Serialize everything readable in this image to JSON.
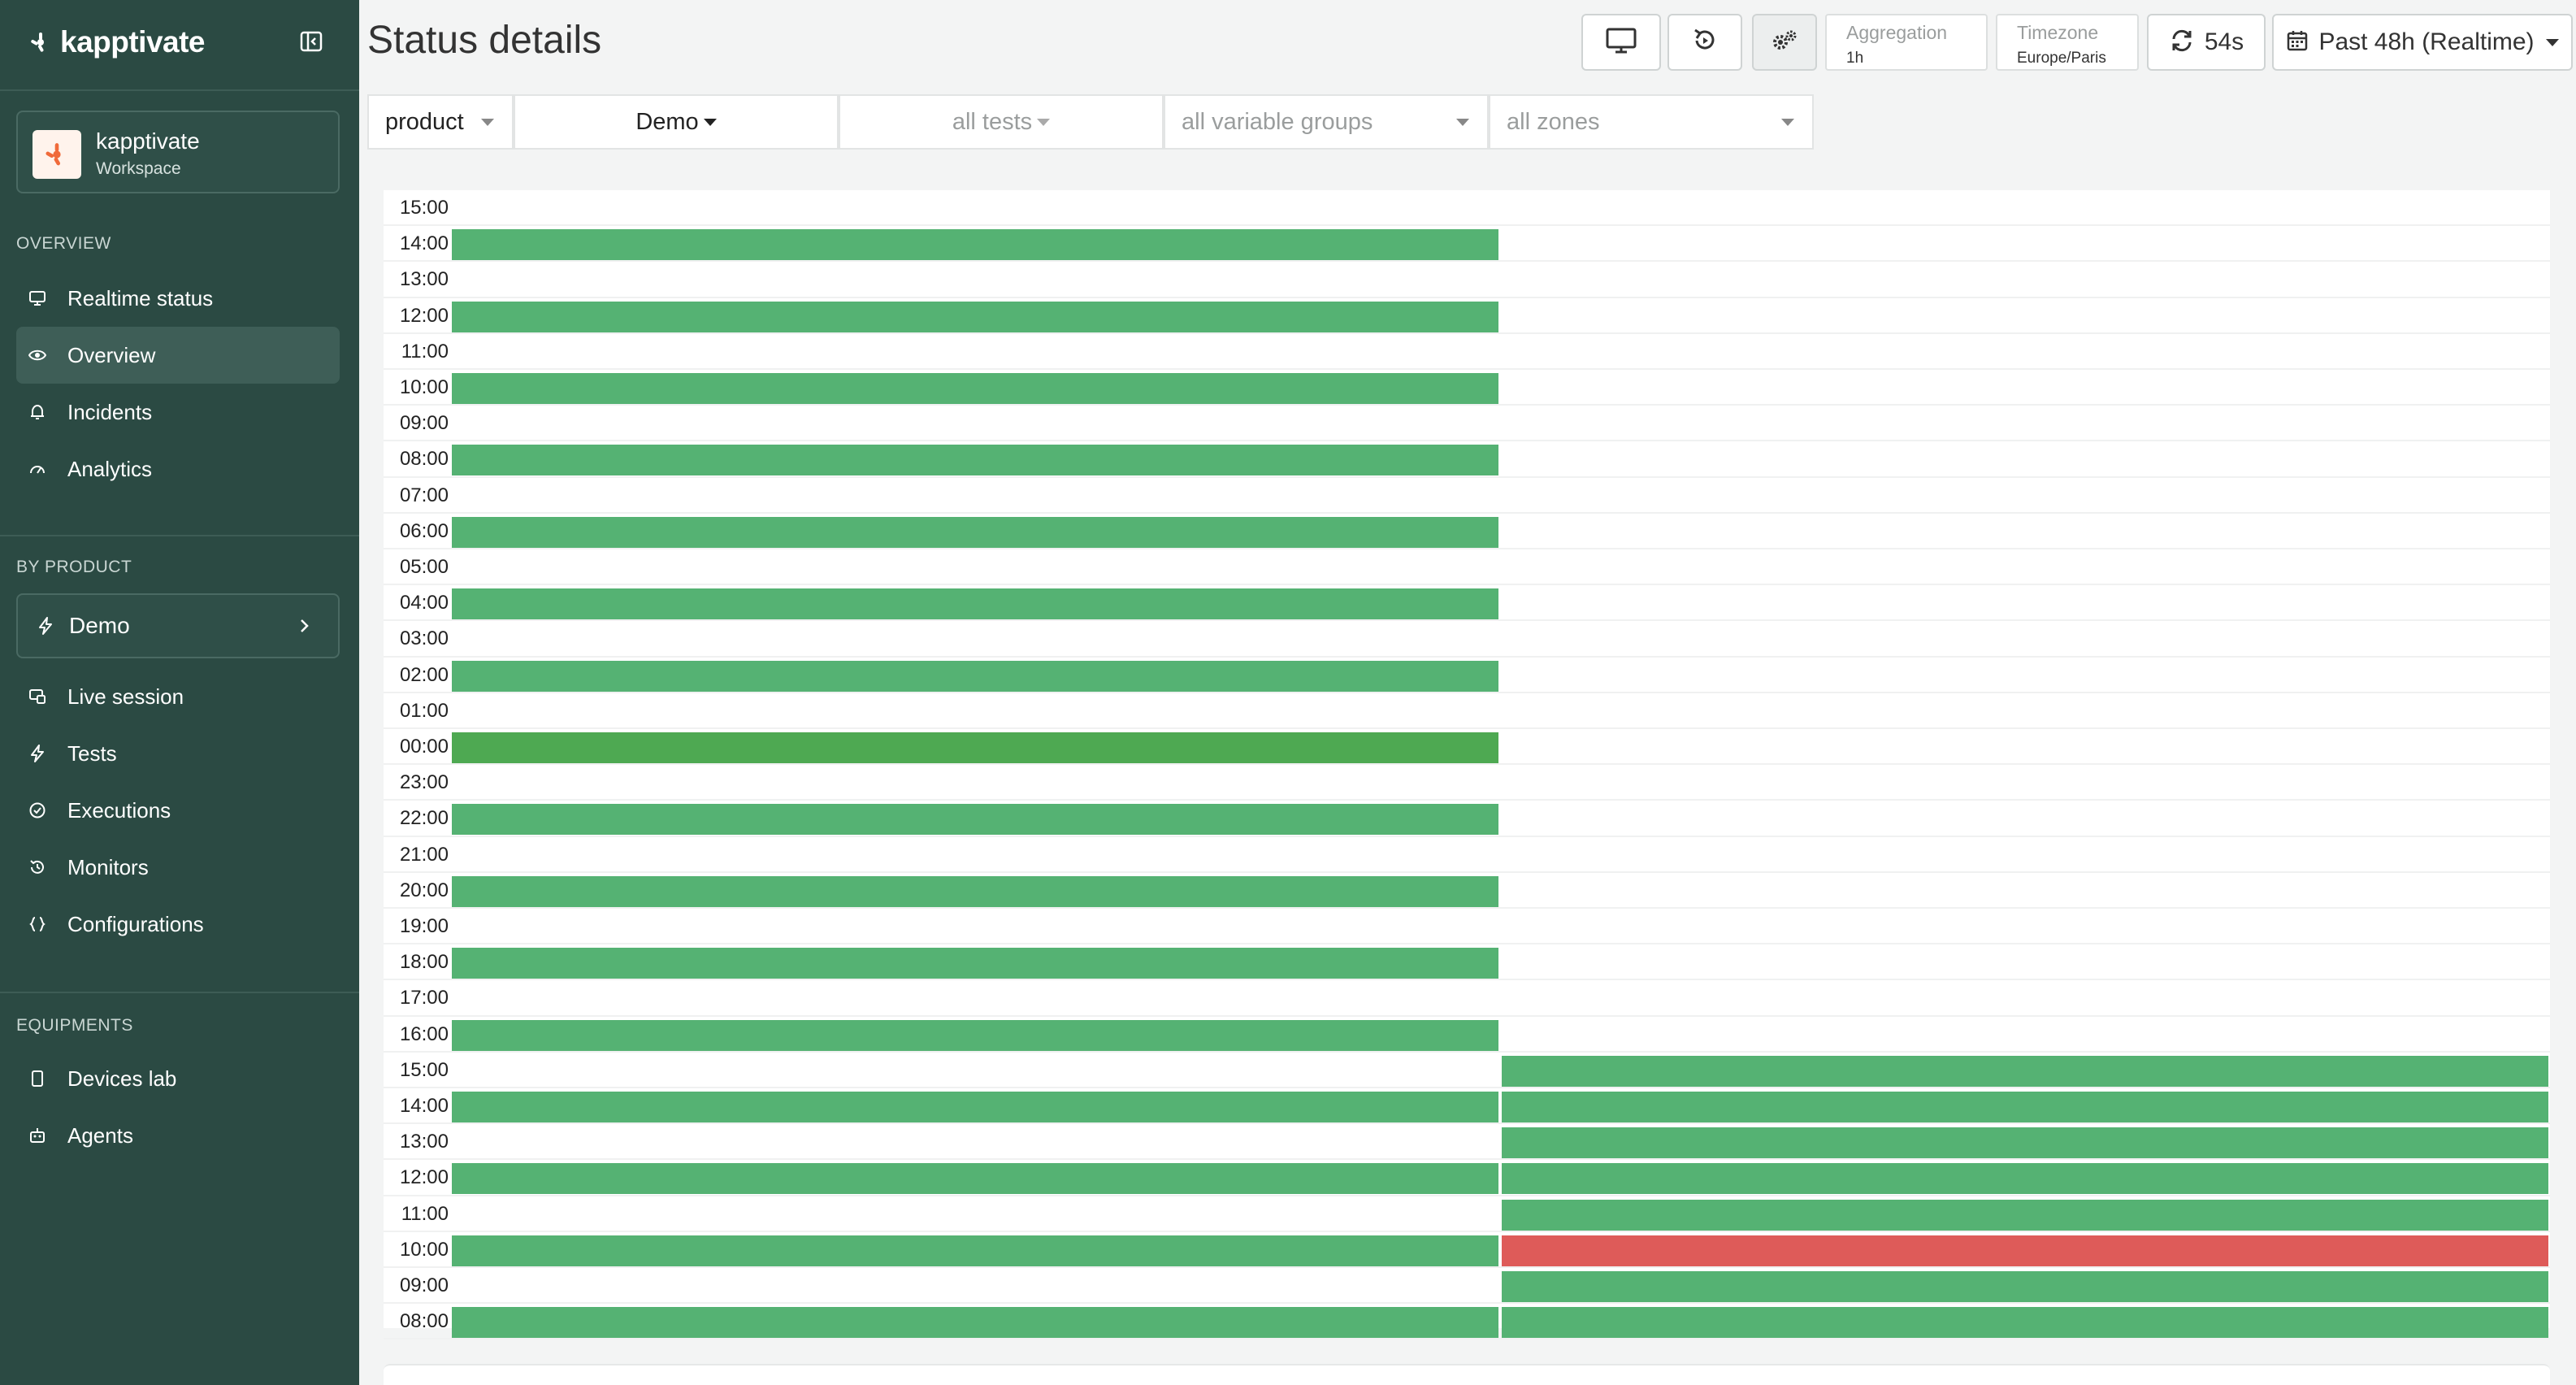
{
  "sidebar": {
    "brand": "kapptivate",
    "workspace": {
      "name": "kapptivate",
      "sub": "Workspace"
    },
    "sections": {
      "overview": "OVERVIEW",
      "by_product": "BY PRODUCT",
      "equipments": "EQUIPMENTS"
    },
    "overview_items": [
      {
        "label": "Realtime status",
        "icon": "monitor-icon"
      },
      {
        "label": "Overview",
        "icon": "eye-icon",
        "active": true
      },
      {
        "label": "Incidents",
        "icon": "bell-icon"
      },
      {
        "label": "Analytics",
        "icon": "gauge-icon"
      }
    ],
    "product": {
      "label": "Demo",
      "icon": "bolt-icon"
    },
    "product_items": [
      {
        "label": "Live session",
        "icon": "screen-share-icon"
      },
      {
        "label": "Tests",
        "icon": "bolt-icon"
      },
      {
        "label": "Executions",
        "icon": "check-circle-icon"
      },
      {
        "label": "Monitors",
        "icon": "history-icon"
      },
      {
        "label": "Configurations",
        "icon": "braces-icon"
      }
    ],
    "equipment_items": [
      {
        "label": "Devices lab",
        "icon": "phone-icon"
      },
      {
        "label": "Agents",
        "icon": "robot-icon"
      }
    ]
  },
  "header": {
    "title": "Status details",
    "aggregation": {
      "label": "Aggregation",
      "value": "1h"
    },
    "timezone": {
      "label": "Timezone",
      "value": "Europe/Paris"
    },
    "refresh": "54s",
    "range": "Past 48h (Realtime)"
  },
  "filters": {
    "group_by": "product",
    "product": "Demo",
    "tests": "all tests",
    "variable_groups": "all variable groups",
    "zones": "all zones"
  },
  "status_grid": {
    "rows": [
      {
        "time": "15:00",
        "left": "none",
        "right": "none"
      },
      {
        "time": "14:00",
        "left": "up",
        "right": "none"
      },
      {
        "time": "13:00",
        "left": "none",
        "right": "none"
      },
      {
        "time": "12:00",
        "left": "up",
        "right": "none"
      },
      {
        "time": "11:00",
        "left": "none",
        "right": "none"
      },
      {
        "time": "10:00",
        "left": "up",
        "right": "none"
      },
      {
        "time": "09:00",
        "left": "none",
        "right": "none"
      },
      {
        "time": "08:00",
        "left": "up",
        "right": "none"
      },
      {
        "time": "07:00",
        "left": "none",
        "right": "none"
      },
      {
        "time": "06:00",
        "left": "up",
        "right": "none"
      },
      {
        "time": "05:00",
        "left": "none",
        "right": "none"
      },
      {
        "time": "04:00",
        "left": "up",
        "right": "none"
      },
      {
        "time": "03:00",
        "left": "none",
        "right": "none"
      },
      {
        "time": "02:00",
        "left": "up",
        "right": "none"
      },
      {
        "time": "01:00",
        "left": "none",
        "right": "none"
      },
      {
        "time": "00:00",
        "left": "up-strong",
        "right": "none"
      },
      {
        "time": "23:00",
        "left": "none",
        "right": "none"
      },
      {
        "time": "22:00",
        "left": "up",
        "right": "none"
      },
      {
        "time": "21:00",
        "left": "none",
        "right": "none"
      },
      {
        "time": "20:00",
        "left": "up",
        "right": "none"
      },
      {
        "time": "19:00",
        "left": "none",
        "right": "none"
      },
      {
        "time": "18:00",
        "left": "up",
        "right": "none"
      },
      {
        "time": "17:00",
        "left": "none",
        "right": "none"
      },
      {
        "time": "16:00",
        "left": "up",
        "right": "none"
      },
      {
        "time": "15:00",
        "left": "none",
        "right": "up"
      },
      {
        "time": "14:00",
        "left": "up",
        "right": "up"
      },
      {
        "time": "13:00",
        "left": "none",
        "right": "up"
      },
      {
        "time": "12:00",
        "left": "up",
        "right": "up"
      },
      {
        "time": "11:00",
        "left": "none",
        "right": "up"
      },
      {
        "time": "10:00",
        "left": "up",
        "right": "down"
      },
      {
        "time": "09:00",
        "left": "none",
        "right": "up"
      },
      {
        "time": "08:00",
        "left": "up",
        "right": "up"
      }
    ],
    "colors": {
      "up": "#55b273",
      "up-strong": "#4ea952",
      "down": "#de5b59"
    }
  }
}
